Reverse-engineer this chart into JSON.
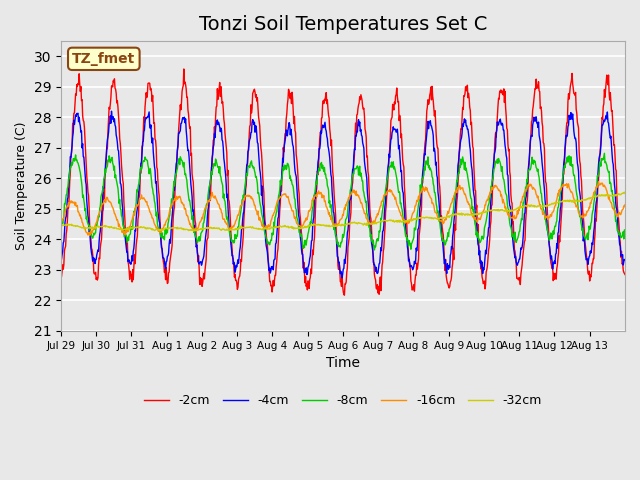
{
  "title": "Tonzi Soil Temperatures Set C",
  "xlabel": "Time",
  "ylabel": "Soil Temperature (C)",
  "ylim": [
    21.0,
    30.5
  ],
  "yticks": [
    21.0,
    22.0,
    23.0,
    24.0,
    25.0,
    26.0,
    27.0,
    28.0,
    29.0,
    30.0
  ],
  "x_tick_labels": [
    "Jul 29",
    "Jul 30",
    "Jul 31",
    "Aug 1",
    "Aug 2",
    "Aug 3",
    "Aug 4",
    "Aug 5",
    "Aug 6",
    "Aug 7",
    "Aug 8",
    "Aug 9",
    "Aug 10",
    "Aug 11",
    "Aug 12",
    "Aug 13"
  ],
  "series_colors": [
    "#FF0000",
    "#0000FF",
    "#00CC00",
    "#FF8C00",
    "#CCCC00"
  ],
  "series_labels": [
    "-2cm",
    "-4cm",
    "-8cm",
    "-16cm",
    "-32cm"
  ],
  "annotation_text": "TZ_fmet",
  "annotation_color": "#8B4513",
  "annotation_bg": "#FFFFCC",
  "annotation_border": "#8B4513",
  "bg_color": "#E8E8E8",
  "plot_bg_color": "#E8E8E8",
  "grid_color": "#FFFFFF",
  "title_fontsize": 14,
  "n_points": 960,
  "days": 16
}
